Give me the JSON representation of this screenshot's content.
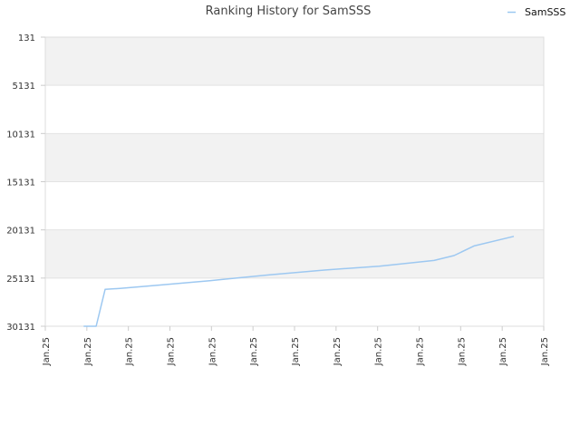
{
  "chart_data": {
    "type": "line",
    "title": "Ranking History for SamSSS",
    "xlabel": "",
    "ylabel": "",
    "y_reversed": true,
    "ylim": [
      131,
      30131
    ],
    "y_ticks": [
      "131",
      "5131",
      "10131",
      "15131",
      "20131",
      "25131",
      "30131"
    ],
    "x_tick_labels": [
      "Jan.25",
      "Jan.25",
      "Jan.25",
      "Jan.25",
      "Jan.25",
      "Jan.25",
      "Jan.25",
      "Jan.25",
      "Jan.25",
      "Jan.25",
      "Jan.25",
      "Jan.25",
      "Jan.25"
    ],
    "grid": true,
    "legend_position": "top-right",
    "series": [
      {
        "name": "SamSSS",
        "color": "#9dc8f1",
        "x": [
          0.077,
          0.102,
          0.12,
          0.15,
          0.22,
          0.33,
          0.45,
          0.56,
          0.67,
          0.78,
          0.82,
          0.86,
          0.94
        ],
        "values": [
          30131,
          30131,
          26300,
          26200,
          25900,
          25400,
          24800,
          24300,
          23900,
          23300,
          22800,
          21800,
          20800
        ]
      }
    ]
  }
}
